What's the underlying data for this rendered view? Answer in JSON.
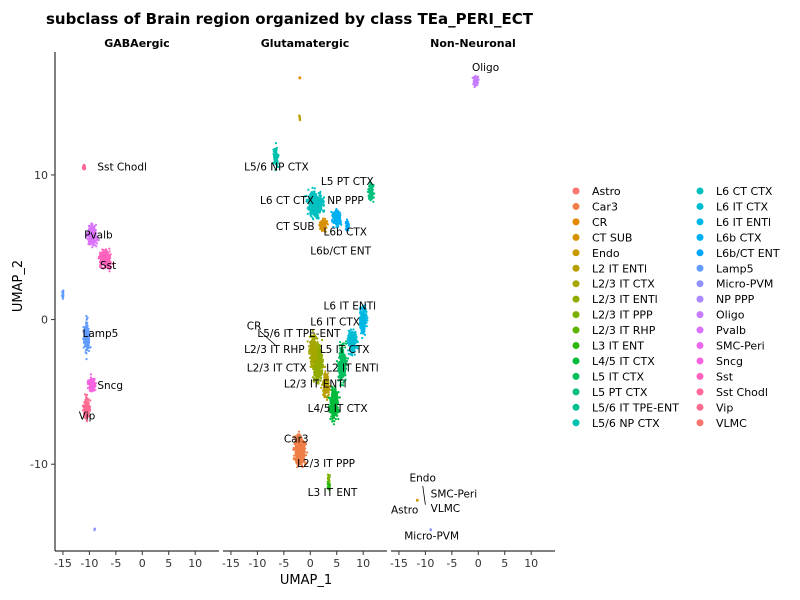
{
  "chart_data": {
    "type": "scatter",
    "title": "subclass of Brain region organized by class TEa_PERI_ECT",
    "xlabel": "UMAP_1",
    "ylabel": "UMAP_2",
    "xlim": [
      -16.5,
      14.5
    ],
    "ylim": [
      -16,
      18.5
    ],
    "xticks": [
      -15,
      -10,
      -5,
      0,
      5,
      10
    ],
    "xtick_labels": [
      "-15",
      "-10",
      "-5",
      "0",
      "5",
      "10"
    ],
    "yticks": [
      -10,
      0,
      10
    ],
    "ytick_labels": [
      "-10",
      "0",
      "10"
    ],
    "grid": false,
    "legend_position": "right",
    "panels": [
      {
        "name": "GABAergic",
        "clusters": [
          {
            "subclass": "Sst Chodl",
            "x": -11,
            "y": 10.5,
            "sx": 0.3,
            "sy": 0.3
          },
          {
            "subclass": "Pvalb",
            "x": -9.5,
            "y": 5.8,
            "sx": 1.2,
            "sy": 0.8
          },
          {
            "subclass": "Sst",
            "x": -7,
            "y": 4.2,
            "sx": 1.4,
            "sy": 0.7
          },
          {
            "subclass": "Lamp5",
            "x": -10.5,
            "y": -1.2,
            "sx": 0.6,
            "sy": 1.3
          },
          {
            "subclass": "Sncg",
            "x": -9.5,
            "y": -4.5,
            "sx": 0.9,
            "sy": 0.6
          },
          {
            "subclass": "Vip",
            "x": -10.5,
            "y": -6.2,
            "sx": 0.7,
            "sy": 1.0
          },
          {
            "subclass": "Lamp5",
            "x": -15,
            "y": 1.7,
            "sx": 0.2,
            "sy": 0.4
          },
          {
            "subclass": "Micro-PVM",
            "x": -9,
            "y": -14.5,
            "sx": 0.1,
            "sy": 0.1
          }
        ],
        "labels": [
          {
            "text": "Sst Chodl",
            "x": -8.5,
            "y": 10.3
          },
          {
            "text": "Pvalb",
            "x": -11,
            "y": 5.6
          },
          {
            "text": "Sst",
            "x": -8,
            "y": 3.5
          },
          {
            "text": "Lamp5",
            "x": -11.3,
            "y": -1.2
          },
          {
            "text": "Sncg",
            "x": -8.5,
            "y": -4.8
          },
          {
            "text": "Vip",
            "x": -12,
            "y": -6.9
          }
        ],
        "lines": []
      },
      {
        "name": "Glutamatergic",
        "clusters": [
          {
            "subclass": "L5/6 NP CTX",
            "x": -6.5,
            "y": 11.2,
            "sx": 0.5,
            "sy": 0.8
          },
          {
            "subclass": "L6 CT CTX",
            "x": 1,
            "y": 8,
            "sx": 1.8,
            "sy": 1.0
          },
          {
            "subclass": "L6b CTX",
            "x": 5,
            "y": 7,
            "sx": 1.0,
            "sy": 0.7
          },
          {
            "subclass": "CT SUB",
            "x": 2.5,
            "y": 6.5,
            "sx": 0.8,
            "sy": 0.5
          },
          {
            "subclass": "L6b/CT ENT",
            "x": 7,
            "y": 6.5,
            "sx": 0.4,
            "sy": 0.4
          },
          {
            "subclass": "L5 PT CTX",
            "x": 11.5,
            "y": 8.8,
            "sx": 0.6,
            "sy": 0.7
          },
          {
            "subclass": "L6 IT ENTl",
            "x": 10,
            "y": 0,
            "sx": 0.8,
            "sy": 1.2
          },
          {
            "subclass": "L6 IT CTX",
            "x": 8,
            "y": -1.5,
            "sx": 1.0,
            "sy": 1.0
          },
          {
            "subclass": "L2/3 IT ENTl",
            "x": 1.5,
            "y": -3,
            "sx": 1.0,
            "sy": 1.6
          },
          {
            "subclass": "L2/3 IT CTX",
            "x": 0.5,
            "y": -2,
            "sx": 0.8,
            "sy": 1.2
          },
          {
            "subclass": "L2 IT ENTl",
            "x": 3,
            "y": -4.5,
            "sx": 0.8,
            "sy": 1.0
          },
          {
            "subclass": "L5 IT CTX",
            "x": 6,
            "y": -3,
            "sx": 0.9,
            "sy": 1.5
          },
          {
            "subclass": "L4/5 IT CTX",
            "x": 4.5,
            "y": -5.8,
            "sx": 1.0,
            "sy": 1.3
          },
          {
            "subclass": "Car3",
            "x": -2,
            "y": -9,
            "sx": 1.3,
            "sy": 1.2
          },
          {
            "subclass": "L2/3 IT PPP",
            "x": 3.5,
            "y": -11,
            "sx": 0.2,
            "sy": 0.4
          },
          {
            "subclass": "L3 IT ENT",
            "x": 3.5,
            "y": -11.5,
            "sx": 0.3,
            "sy": 0.3
          },
          {
            "subclass": "CR",
            "x": -2,
            "y": 16.7,
            "sx": 0.15,
            "sy": 0.1
          },
          {
            "subclass": "L2 IT ENTl",
            "x": -2,
            "y": 14,
            "sx": 0.15,
            "sy": 0.3
          }
        ],
        "labels": [
          {
            "text": "L5/6 NP CTX",
            "x": -12.5,
            "y": 10.3
          },
          {
            "text": "L5 PT CTX",
            "x": 2,
            "y": 9.3
          },
          {
            "text": "L6 CT CTX",
            "x": -9.5,
            "y": 8
          },
          {
            "text": "NP PPP",
            "x": 3.2,
            "y": 8
          },
          {
            "text": "CT SUB",
            "x": -6.5,
            "y": 6.2
          },
          {
            "text": "L6b CTX",
            "x": 2.5,
            "y": 5.8
          },
          {
            "text": "L6b/CT ENT",
            "x": 0,
            "y": 4.5
          },
          {
            "text": "L6 IT ENTl",
            "x": 2.5,
            "y": 0.7
          },
          {
            "text": "L6 IT CTX",
            "x": 0,
            "y": -0.4
          },
          {
            "text": "CR",
            "x": -12,
            "y": -0.7
          },
          {
            "text": "L5/6 IT TPE-ENT",
            "x": -10,
            "y": -1.2
          },
          {
            "text": "L2/3 IT RHP",
            "x": -12.5,
            "y": -2.3
          },
          {
            "text": "L5 IT CTX",
            "x": 1.8,
            "y": -2.3
          },
          {
            "text": "L2/3 IT CTX",
            "x": -12,
            "y": -3.6
          },
          {
            "text": "L2 IT ENTl",
            "x": 3,
            "y": -3.6
          },
          {
            "text": "L2/3 IT ENTl",
            "x": -5,
            "y": -4.7
          },
          {
            "text": "L4/5 IT CTX",
            "x": -0.5,
            "y": -6.4
          },
          {
            "text": "Car3",
            "x": -5,
            "y": -8.5
          },
          {
            "text": "L2/3 IT PPP",
            "x": -2.5,
            "y": -10.2
          },
          {
            "text": "L3 IT ENT",
            "x": -0.5,
            "y": -12.2
          }
        ],
        "lines": [
          {
            "x1": -9.5,
            "y1": -0.8,
            "x2": -6.5,
            "y2": -1.8
          }
        ]
      },
      {
        "name": "Non-Neuronal",
        "clusters": [
          {
            "subclass": "Oligo",
            "x": -0.5,
            "y": 16.5,
            "sx": 0.6,
            "sy": 0.4
          },
          {
            "subclass": "Endo",
            "x": -11.5,
            "y": -12.5,
            "sx": 0.1,
            "sy": 0.1
          },
          {
            "subclass": "Micro-PVM",
            "x": -9,
            "y": -14.5,
            "sx": 0.1,
            "sy": 0.1
          }
        ],
        "labels": [
          {
            "text": "Oligo",
            "x": -1.2,
            "y": 17.2
          },
          {
            "text": "Endo",
            "x": -13,
            "y": -11.2
          },
          {
            "text": "SMC-Peri",
            "x": -9,
            "y": -12.3
          },
          {
            "text": "Astro",
            "x": -16.5,
            "y": -13.4
          },
          {
            "text": "VLMC",
            "x": -9,
            "y": -13.3
          },
          {
            "text": "Micro-PVM",
            "x": -14,
            "y": -15.2
          }
        ],
        "lines": [
          {
            "x1": -10.5,
            "y1": -11.5,
            "x2": -10,
            "y2": -12.8
          }
        ]
      }
    ],
    "legend": [
      {
        "name": "Astro",
        "color": "#F8766D"
      },
      {
        "name": "Car3",
        "color": "#EF7F47"
      },
      {
        "name": "CR",
        "color": "#E48800"
      },
      {
        "name": "CT SUB",
        "color": "#D79000"
      },
      {
        "name": "Endo",
        "color": "#C89800"
      },
      {
        "name": "L2 IT ENTl",
        "color": "#B89F00"
      },
      {
        "name": "L2/3 IT CTX",
        "color": "#A6A600"
      },
      {
        "name": "L2/3 IT ENTl",
        "color": "#92AB00"
      },
      {
        "name": "L2/3 IT PPP",
        "color": "#7BB000"
      },
      {
        "name": "L2/3 IT RHP",
        "color": "#5DB400"
      },
      {
        "name": "L3 IT ENT",
        "color": "#2BB811"
      },
      {
        "name": "L4/5 IT CTX",
        "color": "#00BB3C"
      },
      {
        "name": "L5 IT CTX",
        "color": "#00BE5E"
      },
      {
        "name": "L5 PT CTX",
        "color": "#00C07B"
      },
      {
        "name": "L5/6 IT TPE-ENT",
        "color": "#00C094"
      },
      {
        "name": "L5/6 NP CTX",
        "color": "#00C1AB"
      },
      {
        "name": "L6 CT CTX",
        "color": "#00C0C0"
      },
      {
        "name": "L6 IT CTX",
        "color": "#00BDD3"
      },
      {
        "name": "L6 IT ENTl",
        "color": "#00B8E4"
      },
      {
        "name": "L6b CTX",
        "color": "#00B1F2"
      },
      {
        "name": "L6b/CT ENT",
        "color": "#00A8FC"
      },
      {
        "name": "Lamp5",
        "color": "#619CFF"
      },
      {
        "name": "Micro-PVM",
        "color": "#8F91FF"
      },
      {
        "name": "NP PPP",
        "color": "#AC88FF"
      },
      {
        "name": "Oligo",
        "color": "#C77CFF"
      },
      {
        "name": "Pvalb",
        "color": "#DB72FB"
      },
      {
        "name": "SMC-Peri",
        "color": "#EB69F0"
      },
      {
        "name": "Sncg",
        "color": "#F763E0"
      },
      {
        "name": "Sst",
        "color": "#FF62BC"
      },
      {
        "name": "Sst Chodl",
        "color": "#FF6699"
      },
      {
        "name": "Vip",
        "color": "#FF6C91"
      },
      {
        "name": "VLMC",
        "color": "#F8766D"
      }
    ]
  }
}
